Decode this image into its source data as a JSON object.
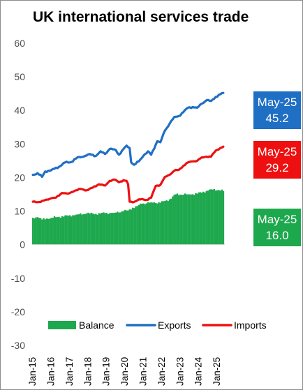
{
  "chart_data": {
    "type": "line",
    "title": "UK international services trade",
    "ylim": [
      -30,
      60
    ],
    "yticks": [
      "60",
      "50",
      "40",
      "30",
      "20",
      "10",
      "0",
      "-10",
      "-20",
      "-30"
    ],
    "grid": false,
    "legend_position": "bottom",
    "x_tick_labels": [
      "Jan-15",
      "Jan-16",
      "Jan-17",
      "Jan-18",
      "Jan-19",
      "Jan-20",
      "Jan-21",
      "Jan-22",
      "Jan-23",
      "Jan-24",
      "Jan-25"
    ],
    "x_start": "2015-01",
    "x_end": "2025-05",
    "colors": {
      "balance": "#1ea84e",
      "exports": "#1f6fc4",
      "imports": "#ee1010"
    },
    "series": [
      {
        "name": "Balance",
        "kind": "bar",
        "color": "#1ea84e",
        "anchors": [
          [
            "2015-01",
            8.0
          ],
          [
            "2015-04",
            8.2
          ],
          [
            "2015-07",
            7.5
          ],
          [
            "2015-10",
            7.8
          ],
          [
            "2016-01",
            8.0
          ],
          [
            "2016-06",
            8.3
          ],
          [
            "2016-12",
            8.6
          ],
          [
            "2017-06",
            9.0
          ],
          [
            "2017-12",
            9.3
          ],
          [
            "2018-06",
            9.2
          ],
          [
            "2018-12",
            9.4
          ],
          [
            "2019-06",
            9.5
          ],
          [
            "2019-12",
            10.0
          ],
          [
            "2020-03",
            10.2
          ],
          [
            "2020-06",
            11.0
          ],
          [
            "2020-09",
            11.5
          ],
          [
            "2020-12",
            12.2
          ],
          [
            "2021-06",
            12.6
          ],
          [
            "2021-12",
            12.5
          ],
          [
            "2022-06",
            13.5
          ],
          [
            "2022-10",
            15.0
          ],
          [
            "2023-06",
            15.0
          ],
          [
            "2023-12",
            15.2
          ],
          [
            "2024-06",
            16.0
          ],
          [
            "2024-09",
            16.5
          ],
          [
            "2025-02",
            16.3
          ],
          [
            "2025-05",
            16.0
          ]
        ]
      },
      {
        "name": "Exports",
        "kind": "line",
        "color": "#1f6fc4",
        "anchors": [
          [
            "2015-01",
            20.8
          ],
          [
            "2015-04",
            21.3
          ],
          [
            "2015-07",
            20.2
          ],
          [
            "2015-09",
            21.8
          ],
          [
            "2016-01",
            22.2
          ],
          [
            "2016-06",
            23.2
          ],
          [
            "2016-10",
            24.5
          ],
          [
            "2017-02",
            24.6
          ],
          [
            "2017-06",
            26.0
          ],
          [
            "2017-10",
            26.2
          ],
          [
            "2018-02",
            27.0
          ],
          [
            "2018-06",
            26.4
          ],
          [
            "2018-09",
            27.8
          ],
          [
            "2018-12",
            27.0
          ],
          [
            "2019-03",
            28.5
          ],
          [
            "2019-07",
            28.2
          ],
          [
            "2019-09",
            26.8
          ],
          [
            "2019-12",
            28.5
          ],
          [
            "2020-02",
            29.5
          ],
          [
            "2020-04",
            28.8
          ],
          [
            "2020-05",
            24.5
          ],
          [
            "2020-07",
            23.8
          ],
          [
            "2020-10",
            24.8
          ],
          [
            "2021-01",
            26.5
          ],
          [
            "2021-04",
            27.8
          ],
          [
            "2021-06",
            26.8
          ],
          [
            "2021-10",
            30.8
          ],
          [
            "2021-12",
            30.5
          ],
          [
            "2022-03",
            34.0
          ],
          [
            "2022-06",
            36.0
          ],
          [
            "2022-09",
            38.0
          ],
          [
            "2022-12",
            38.3
          ],
          [
            "2023-03",
            39.5
          ],
          [
            "2023-06",
            40.8
          ],
          [
            "2023-09",
            41.0
          ],
          [
            "2023-12",
            40.8
          ],
          [
            "2024-03",
            42.0
          ],
          [
            "2024-06",
            43.0
          ],
          [
            "2024-09",
            42.8
          ],
          [
            "2024-12",
            44.0
          ],
          [
            "2025-03",
            44.8
          ],
          [
            "2025-05",
            45.2
          ]
        ]
      },
      {
        "name": "Imports",
        "kind": "line",
        "color": "#ee1010",
        "anchors": [
          [
            "2015-01",
            12.8
          ],
          [
            "2015-06",
            12.7
          ],
          [
            "2015-09",
            13.3
          ],
          [
            "2016-01",
            13.8
          ],
          [
            "2016-04",
            14.0
          ],
          [
            "2016-08",
            15.4
          ],
          [
            "2016-12",
            15.2
          ],
          [
            "2017-04",
            16.0
          ],
          [
            "2017-08",
            16.6
          ],
          [
            "2017-12",
            16.2
          ],
          [
            "2018-04",
            17.0
          ],
          [
            "2018-08",
            18.0
          ],
          [
            "2018-12",
            17.6
          ],
          [
            "2019-03",
            19.0
          ],
          [
            "2019-06",
            19.4
          ],
          [
            "2019-09",
            18.6
          ],
          [
            "2019-12",
            19.2
          ],
          [
            "2020-02",
            19.0
          ],
          [
            "2020-03",
            18.0
          ],
          [
            "2020-04",
            12.8
          ],
          [
            "2020-06",
            12.6
          ],
          [
            "2020-09",
            13.2
          ],
          [
            "2020-12",
            13.6
          ],
          [
            "2021-03",
            13.3
          ],
          [
            "2021-06",
            14.0
          ],
          [
            "2021-09",
            17.5
          ],
          [
            "2021-12",
            17.8
          ],
          [
            "2022-03",
            20.2
          ],
          [
            "2022-06",
            20.8
          ],
          [
            "2022-09",
            22.0
          ],
          [
            "2022-12",
            22.3
          ],
          [
            "2023-03",
            23.5
          ],
          [
            "2023-06",
            24.5
          ],
          [
            "2023-09",
            24.8
          ],
          [
            "2023-12",
            25.0
          ],
          [
            "2024-03",
            26.0
          ],
          [
            "2024-06",
            26.2
          ],
          [
            "2024-09",
            26.2
          ],
          [
            "2024-12",
            28.0
          ],
          [
            "2025-03",
            28.8
          ],
          [
            "2025-05",
            29.2
          ]
        ]
      }
    ],
    "end_labels": [
      {
        "series": "Exports",
        "date": "May-25",
        "value": "45.2",
        "color": "#1f6fc4"
      },
      {
        "series": "Imports",
        "date": "May-25",
        "value": "29.2",
        "color": "#ee1010"
      },
      {
        "series": "Balance",
        "date": "May-25",
        "value": "16.0",
        "color": "#1ea84e"
      }
    ]
  }
}
